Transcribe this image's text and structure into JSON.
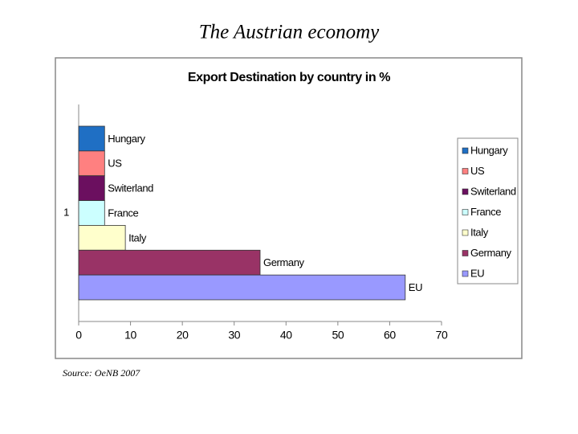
{
  "slide_title": "The Austrian economy",
  "source": "Source: OeNB 2007",
  "chart_data": {
    "type": "bar",
    "orientation": "horizontal",
    "title": "Export Destination by country in %",
    "categories": [
      "1"
    ],
    "series": [
      {
        "name": "Hungary",
        "color": "#1f6fc4",
        "values": [
          5
        ]
      },
      {
        "name": "US",
        "color": "#ff8080",
        "values": [
          5
        ]
      },
      {
        "name": "Switerland",
        "color": "#6b0f5f",
        "values": [
          5
        ]
      },
      {
        "name": "France",
        "color": "#ccffff",
        "values": [
          5
        ]
      },
      {
        "name": "Italy",
        "color": "#ffffcc",
        "values": [
          9
        ]
      },
      {
        "name": "Germany",
        "color": "#993366",
        "values": [
          35
        ]
      },
      {
        "name": "EU",
        "color": "#9999ff",
        "values": [
          63
        ]
      }
    ],
    "xlim": [
      0,
      70
    ],
    "xticks": [
      0,
      10,
      20,
      30,
      40,
      50,
      60,
      70
    ],
    "grid": false,
    "legend": "right"
  }
}
